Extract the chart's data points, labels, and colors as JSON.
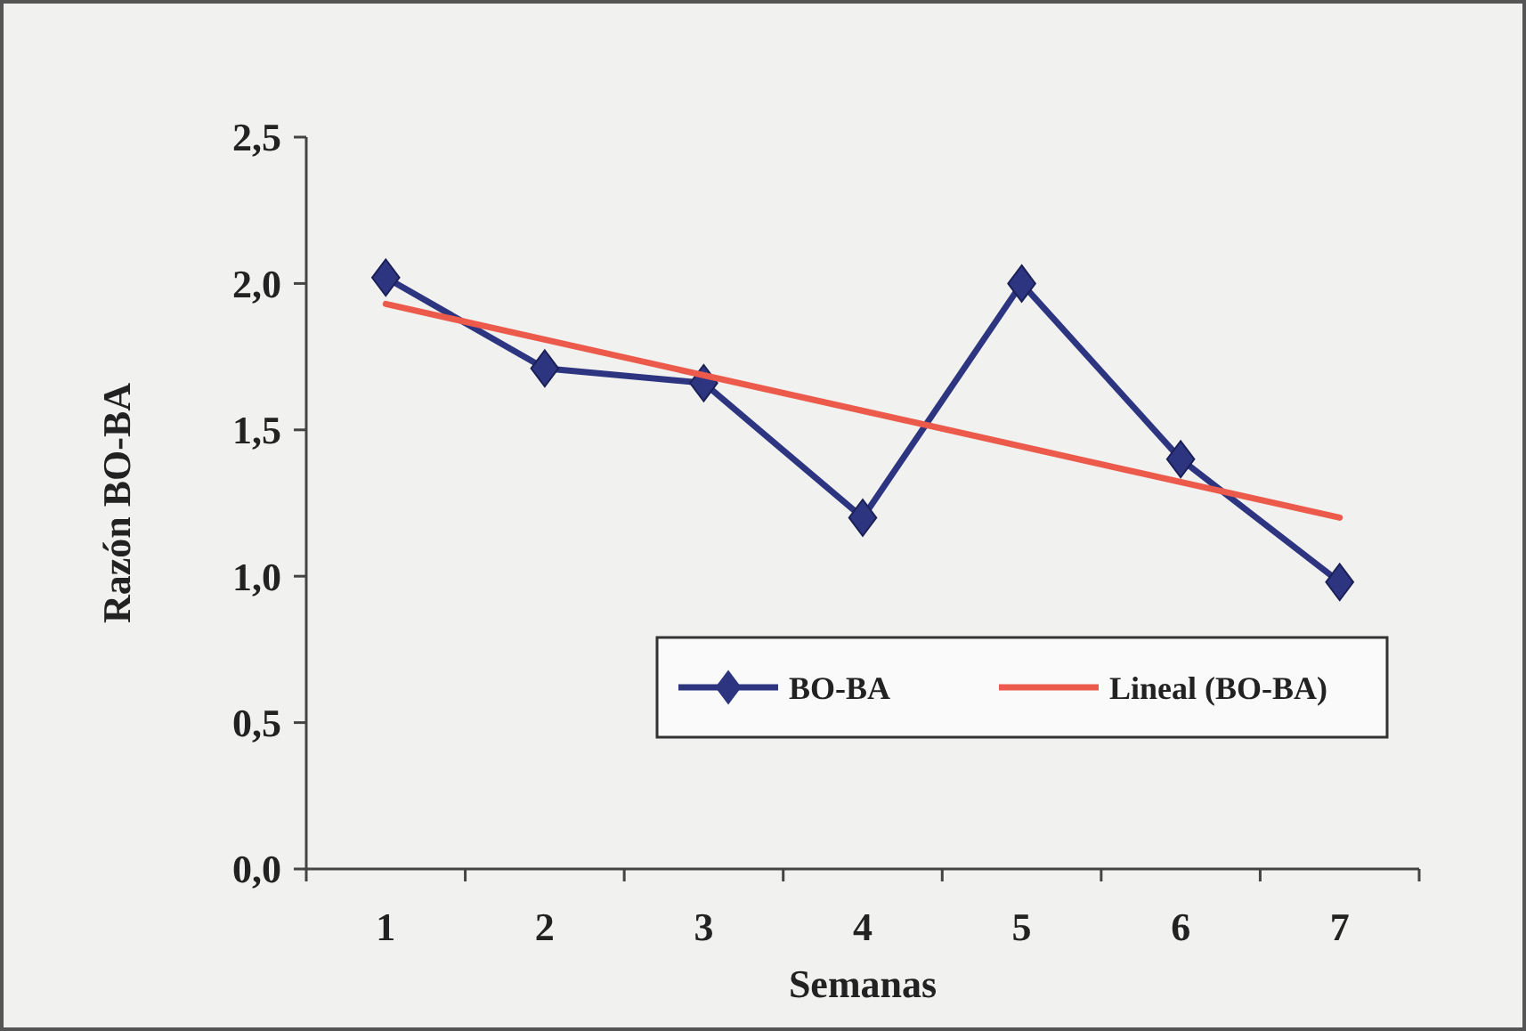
{
  "chart_data": {
    "type": "line",
    "xlabel": "Semanas",
    "ylabel": "Razón BO-BA",
    "categories": [
      "1",
      "2",
      "3",
      "4",
      "5",
      "6",
      "7"
    ],
    "series": [
      {
        "name": "BO-BA",
        "color": "#2e3580",
        "values": [
          2.02,
          1.71,
          1.66,
          1.2,
          2.0,
          1.4,
          0.98
        ],
        "marker": "diamond"
      },
      {
        "name": "Lineal (BO-BA)",
        "type": "line",
        "color": "#ec5a4c",
        "x": [
          "1",
          "7"
        ],
        "values": [
          1.93,
          1.2
        ],
        "marker": "none"
      }
    ],
    "ylim": [
      0,
      2.5
    ],
    "yticks": [
      {
        "value": 0,
        "label": "0,0"
      },
      {
        "value": 0.5,
        "label": "0,5"
      },
      {
        "value": 1,
        "label": "1,0"
      },
      {
        "value": 1.5,
        "label": "1,5"
      },
      {
        "value": 2,
        "label": "2,0"
      },
      {
        "value": 2.5,
        "label": "2,5"
      }
    ],
    "grid": false,
    "legend": "bottom right"
  }
}
